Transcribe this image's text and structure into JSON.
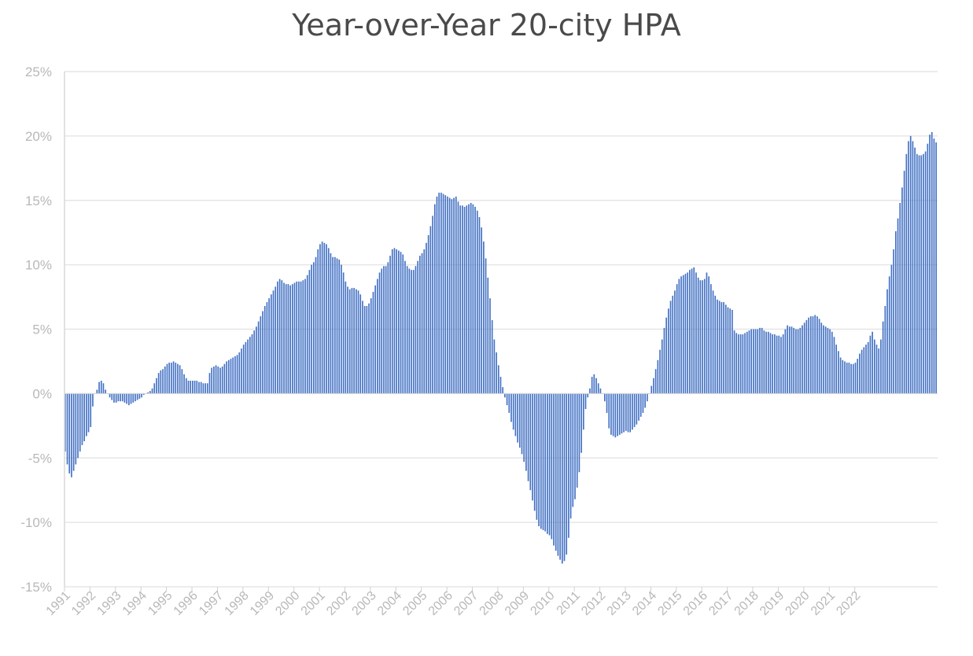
{
  "chart_data": {
    "type": "bar",
    "title": "Year-over-Year 20-city HPA",
    "xlabel": "",
    "ylabel": "",
    "ylim": [
      -15,
      25
    ],
    "y_ticks": [
      "-15%",
      "-10%",
      "-5%",
      "0%",
      "5%",
      "10%",
      "15%",
      "20%",
      "25%"
    ],
    "x_ticks": [
      "1991",
      "1992",
      "1993",
      "1994",
      "1995",
      "1996",
      "1997",
      "1998",
      "1999",
      "2000",
      "2001",
      "2002",
      "2003",
      "2004",
      "2005",
      "2006",
      "2007",
      "2008",
      "2009",
      "2010",
      "2011",
      "2012",
      "2013",
      "2014",
      "2015",
      "2016",
      "2017",
      "2018",
      "2019",
      "2020",
      "2021",
      "2022"
    ],
    "grid": true,
    "bar_color": "#4472c4",
    "x_start": "1991-01",
    "frequency": "monthly",
    "series": [
      {
        "values": [
          -4.5,
          -5.5,
          -6.2,
          -6.5,
          -6.0,
          -5.5,
          -5.0,
          -4.5,
          -4.0,
          -3.7,
          -3.3,
          -3.0,
          -2.6,
          -1.0,
          0.0,
          0.3,
          0.9,
          1.0,
          0.8,
          0.3,
          0.0,
          -0.3,
          -0.5,
          -0.7,
          -0.7,
          -0.6,
          -0.6,
          -0.6,
          -0.7,
          -0.8,
          -0.9,
          -0.8,
          -0.7,
          -0.6,
          -0.5,
          -0.4,
          -0.3,
          -0.1,
          0.0,
          0.1,
          0.2,
          0.4,
          0.8,
          1.2,
          1.6,
          1.8,
          1.9,
          2.1,
          2.3,
          2.4,
          2.4,
          2.5,
          2.4,
          2.3,
          2.2,
          1.9,
          1.5,
          1.2,
          1.0,
          1.0,
          1.0,
          1.0,
          1.0,
          0.9,
          0.9,
          0.8,
          0.8,
          0.8,
          1.6,
          2.0,
          2.1,
          2.2,
          2.1,
          2.0,
          2.1,
          2.3,
          2.5,
          2.6,
          2.7,
          2.8,
          2.9,
          3.0,
          3.2,
          3.5,
          3.8,
          4.0,
          4.2,
          4.4,
          4.6,
          4.9,
          5.2,
          5.6,
          6.0,
          6.4,
          6.8,
          7.1,
          7.4,
          7.7,
          8.0,
          8.3,
          8.7,
          8.9,
          8.8,
          8.6,
          8.5,
          8.5,
          8.4,
          8.5,
          8.6,
          8.7,
          8.7,
          8.7,
          8.8,
          8.9,
          9.2,
          9.6,
          10.0,
          10.2,
          10.6,
          11.2,
          11.6,
          11.8,
          11.7,
          11.6,
          11.3,
          10.9,
          10.6,
          10.6,
          10.5,
          10.4,
          10.0,
          9.4,
          8.7,
          8.3,
          8.1,
          8.2,
          8.2,
          8.1,
          8.0,
          7.7,
          7.2,
          6.8,
          6.8,
          7.0,
          7.4,
          7.9,
          8.4,
          8.9,
          9.4,
          9.7,
          9.9,
          9.9,
          10.2,
          10.7,
          11.2,
          11.3,
          11.2,
          11.1,
          11.0,
          10.8,
          10.3,
          9.9,
          9.7,
          9.6,
          9.6,
          9.9,
          10.3,
          10.7,
          10.9,
          11.2,
          11.7,
          12.3,
          13.0,
          13.8,
          14.7,
          15.3,
          15.6,
          15.6,
          15.5,
          15.4,
          15.3,
          15.2,
          15.1,
          15.2,
          15.3,
          14.9,
          14.6,
          14.6,
          14.5,
          14.6,
          14.7,
          14.8,
          14.7,
          14.5,
          14.2,
          13.7,
          12.9,
          11.8,
          10.5,
          9.0,
          7.4,
          5.7,
          4.2,
          3.2,
          2.2,
          1.3,
          0.5,
          -0.3,
          -0.9,
          -1.5,
          -2.2,
          -2.8,
          -3.3,
          -3.8,
          -4.2,
          -4.7,
          -5.3,
          -6.0,
          -6.8,
          -7.5,
          -8.3,
          -9.1,
          -9.8,
          -10.3,
          -10.5,
          -10.6,
          -10.7,
          -10.9,
          -11.0,
          -11.3,
          -11.8,
          -12.2,
          -12.6,
          -12.9,
          -13.2,
          -13.0,
          -12.5,
          -11.2,
          -9.7,
          -8.8,
          -8.2,
          -7.3,
          -6.1,
          -4.6,
          -2.8,
          -1.2,
          -0.3,
          0.4,
          1.3,
          1.5,
          1.2,
          0.8,
          0.4,
          0.0,
          -0.6,
          -1.5,
          -2.7,
          -3.2,
          -3.3,
          -3.4,
          -3.3,
          -3.2,
          -3.1,
          -3.0,
          -2.9,
          -3.0,
          -3.0,
          -2.8,
          -2.6,
          -2.4,
          -2.1,
          -1.8,
          -1.5,
          -1.1,
          -0.6,
          0.0,
          0.6,
          1.2,
          1.9,
          2.6,
          3.4,
          4.2,
          5.1,
          5.9,
          6.6,
          7.2,
          7.6,
          8.0,
          8.5,
          8.9,
          9.1,
          9.2,
          9.3,
          9.4,
          9.6,
          9.7,
          9.8,
          9.4,
          9.0,
          8.8,
          8.8,
          8.9,
          9.4,
          9.1,
          8.5,
          8.0,
          7.6,
          7.3,
          7.2,
          7.1,
          7.1,
          6.9,
          6.7,
          6.6,
          6.5,
          4.9,
          4.7,
          4.6,
          4.6,
          4.6,
          4.7,
          4.8,
          4.9,
          5.0,
          5.0,
          5.0,
          5.0,
          5.1,
          5.1,
          4.9,
          4.8,
          4.8,
          4.7,
          4.6,
          4.6,
          4.5,
          4.5,
          4.4,
          4.6,
          5.0,
          5.3,
          5.2,
          5.2,
          5.1,
          5.0,
          5.0,
          5.1,
          5.3,
          5.5,
          5.7,
          5.9,
          6.0,
          6.0,
          6.1,
          6.0,
          5.8,
          5.5,
          5.3,
          5.2,
          5.1,
          5.0,
          4.8,
          4.4,
          3.8,
          3.3,
          2.8,
          2.6,
          2.5,
          2.4,
          2.4,
          2.3,
          2.3,
          2.4,
          2.7,
          3.1,
          3.4,
          3.6,
          3.8,
          4.0,
          4.5,
          4.8,
          4.2,
          3.8,
          3.5,
          4.2,
          5.6,
          6.8,
          8.1,
          9.1,
          10.0,
          11.2,
          12.6,
          13.6,
          14.8,
          16.0,
          17.3,
          18.6,
          19.6,
          20.0,
          19.6,
          19.1,
          18.6,
          18.5,
          18.5,
          18.6,
          18.8,
          19.4,
          20.1,
          20.3,
          19.8,
          19.5
        ]
      }
    ]
  }
}
